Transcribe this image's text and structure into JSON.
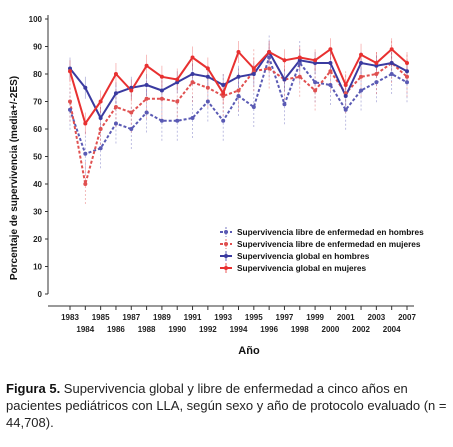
{
  "chart_data": {
    "type": "line",
    "xlabel": "Año",
    "ylabel": "Porcentaje de supervivencia  (media+/-2ES)",
    "ylim": [
      0,
      100
    ],
    "yticks": [
      0,
      10,
      20,
      30,
      40,
      50,
      60,
      70,
      80,
      90,
      100
    ],
    "x": [
      "1983",
      "1984",
      "1985",
      "1986",
      "1987",
      "1988",
      "1989",
      "1990",
      "1991",
      "1992",
      "1993",
      "1994",
      "1995",
      "1996",
      "1997",
      "1998",
      "1999",
      "2000",
      "2001",
      "2002",
      "2003",
      "2004",
      "2007"
    ],
    "legend_position": "center-right",
    "series": [
      {
        "name": "Supervivencia libre de enfermedad en hombres",
        "style": "dashed",
        "color": "#5a5ab4",
        "error": 8,
        "values": [
          67,
          51,
          53,
          62,
          60,
          66,
          63,
          63,
          64,
          70,
          63,
          72,
          68,
          86,
          69,
          84,
          77,
          76,
          67,
          74,
          77,
          80,
          77
        ]
      },
      {
        "name": "Supervivencia libre de enfermedad en mujeres",
        "style": "dashed",
        "color": "#e05050",
        "error": 8,
        "values": [
          70,
          40,
          60,
          68,
          66,
          71,
          71,
          70,
          77,
          75,
          72,
          74,
          81,
          82,
          78,
          79,
          74,
          81,
          73,
          79,
          80,
          84,
          79
        ]
      },
      {
        "name": "Supervivencia global en hombres",
        "style": "solid",
        "color": "#3a3aa0",
        "error": 4,
        "values": [
          82,
          75,
          64,
          73,
          75,
          76,
          74,
          77,
          80,
          79,
          76,
          79,
          80,
          88,
          78,
          85,
          84,
          84,
          72,
          84,
          83,
          84,
          81
        ]
      },
      {
        "name": "Supervivencia global en mujeres",
        "style": "solid",
        "color": "#e83030",
        "error": 4,
        "values": [
          81,
          62,
          70,
          80,
          74,
          83,
          79,
          78,
          86,
          82,
          73,
          88,
          82,
          88,
          85,
          86,
          85,
          89,
          76,
          87,
          84,
          89,
          84
        ]
      }
    ]
  },
  "caption": {
    "label": "Figura 5.",
    "text": " Supervivencia global y libre de enfermedad a cinco años en pacientes pediátricos con LLA, según sexo y año de protocolo evaluado (n = 44,708)."
  }
}
